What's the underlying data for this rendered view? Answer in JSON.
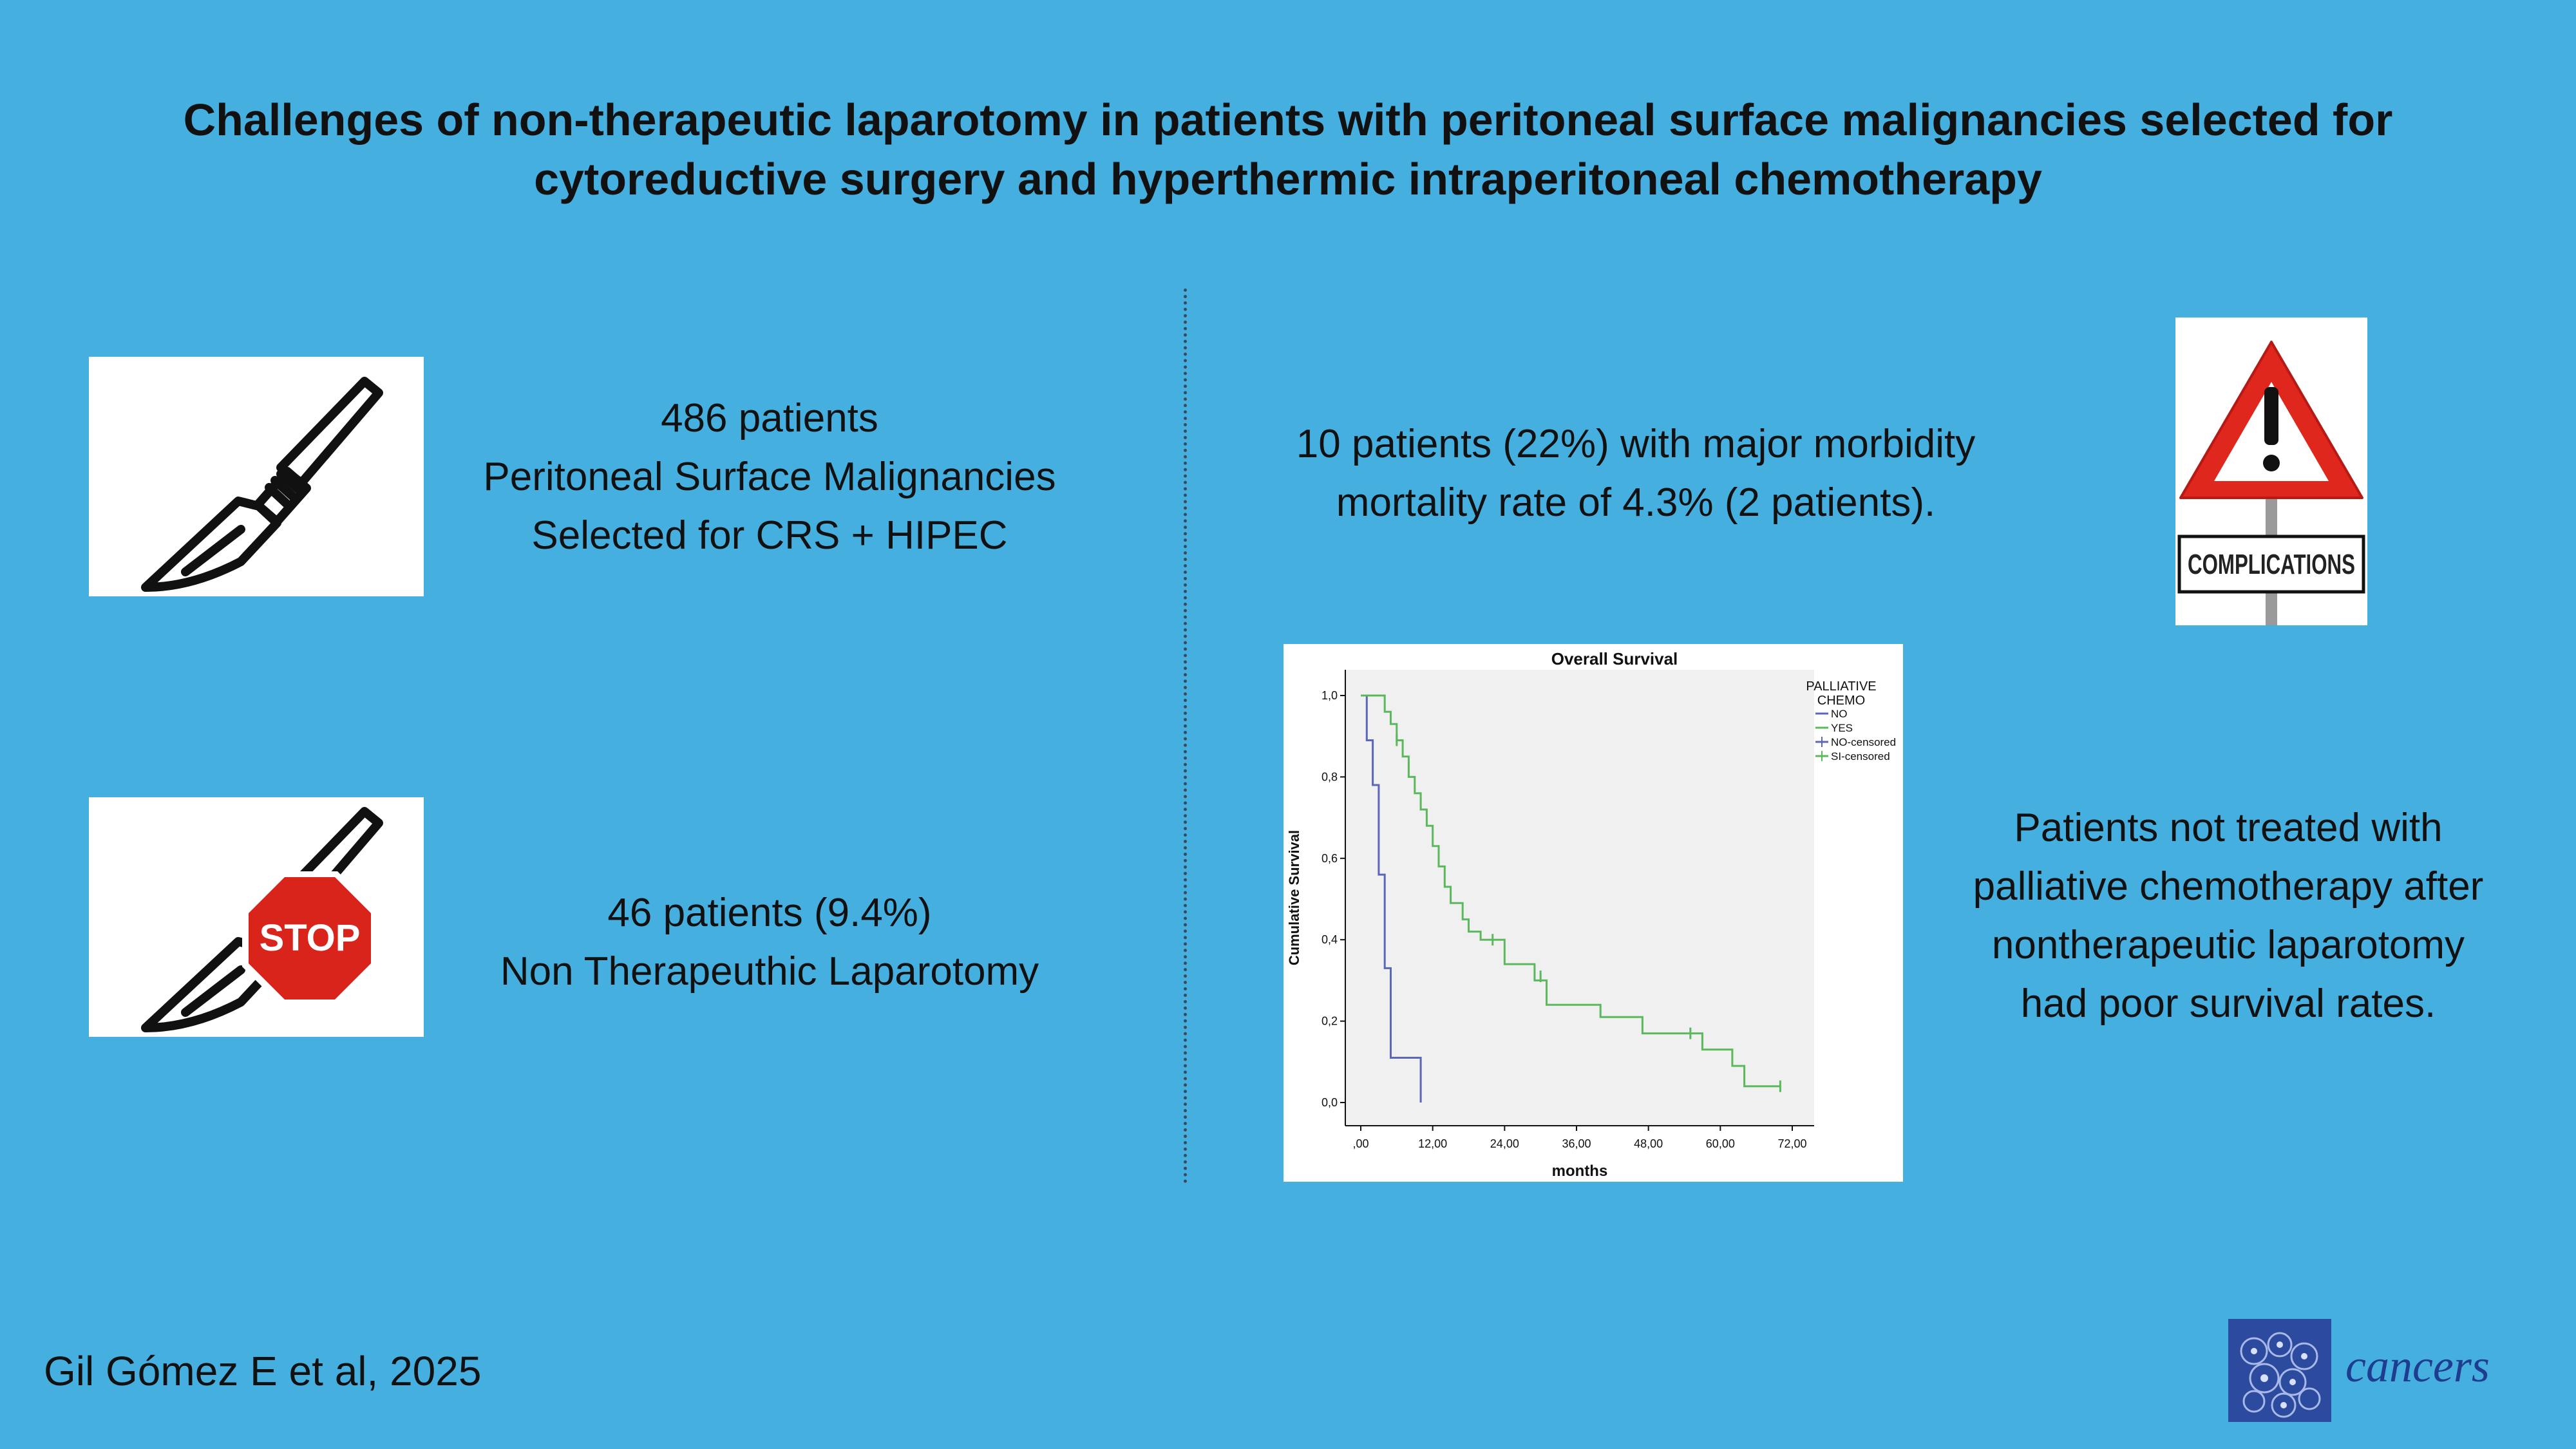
{
  "title": {
    "line1": "Challenges of non-therapeutic laparotomy in patients with peritoneal surface malignancies selected for",
    "line2": "cytoreductive surgery and hyperthermic intraperitoneal chemotherapy"
  },
  "left_top": {
    "line1": "486 patients",
    "line2": "Peritoneal Surface Malignancies",
    "line3": "Selected for CRS + HIPEC"
  },
  "left_bottom": {
    "line1": "46 patients (9.4%)",
    "line2": "Non Therapeuthic Laparotomy"
  },
  "right_top": {
    "line1": "10 patients (22%) with major morbidity",
    "line2": "mortality rate of 4.3% (2 patients)."
  },
  "right_bottom": {
    "line1": "Patients not treated with",
    "line2": "palliative chemotherapy after",
    "line3": "nontherapeutic laparotomy",
    "line4": "had poor survival rates."
  },
  "stop_sign_text": "STOP",
  "complications_sign_text": "COMPLICATIONS",
  "footer": {
    "author": "Gil Gómez E et al, 2025",
    "journal": "cancers"
  },
  "chart_data": {
    "type": "line",
    "title": "Overall Survival",
    "xlabel": "months",
    "ylabel": "Cumulative Survival",
    "xlim": [
      0,
      72
    ],
    "ylim": [
      0,
      1
    ],
    "x_ticks": [
      ",00",
      "12,00",
      "24,00",
      "36,00",
      "48,00",
      "60,00",
      "72,00"
    ],
    "y_ticks": [
      "0,0",
      "0,2",
      "0,4",
      "0,6",
      "0,8",
      "1,0"
    ],
    "legend_title_line1": "PALLIATIVE",
    "legend_title_line2": "CHEMO",
    "legend_position": "right",
    "series": [
      {
        "name": "NO",
        "color": "#5b67b8",
        "x": [
          0,
          1,
          1,
          2,
          2,
          3,
          3,
          4,
          4,
          5,
          5,
          10,
          10
        ],
        "y": [
          1.0,
          1.0,
          0.89,
          0.89,
          0.78,
          0.78,
          0.56,
          0.56,
          0.33,
          0.33,
          0.11,
          0.11,
          0.0
        ]
      },
      {
        "name": "YES",
        "color": "#5cb85c",
        "x": [
          0,
          4,
          4,
          5,
          5,
          6,
          6,
          7,
          7,
          8,
          8,
          9,
          9,
          10,
          10,
          11,
          11,
          12,
          12,
          13,
          13,
          14,
          14,
          15,
          15,
          17,
          17,
          18,
          18,
          20,
          20,
          24,
          24,
          29,
          29,
          31,
          31,
          40,
          40,
          47,
          47,
          55,
          55,
          57,
          57,
          62,
          62,
          64,
          64,
          70
        ],
        "y": [
          1.0,
          1.0,
          0.96,
          0.96,
          0.93,
          0.93,
          0.89,
          0.89,
          0.85,
          0.85,
          0.8,
          0.8,
          0.76,
          0.76,
          0.72,
          0.72,
          0.68,
          0.68,
          0.63,
          0.63,
          0.58,
          0.58,
          0.53,
          0.53,
          0.49,
          0.49,
          0.45,
          0.45,
          0.42,
          0.42,
          0.4,
          0.4,
          0.34,
          0.34,
          0.3,
          0.3,
          0.24,
          0.24,
          0.21,
          0.21,
          0.17,
          0.17,
          0.17,
          0.17,
          0.13,
          0.13,
          0.09,
          0.09,
          0.04,
          0.04
        ]
      },
      {
        "name": "NO-censored",
        "color": "#5b67b8",
        "x": [],
        "y": []
      },
      {
        "name": "SI-censored",
        "color": "#5cb85c",
        "x": [
          6,
          22,
          30,
          55,
          70
        ],
        "y": [
          0.89,
          0.4,
          0.31,
          0.17,
          0.04
        ]
      }
    ]
  }
}
